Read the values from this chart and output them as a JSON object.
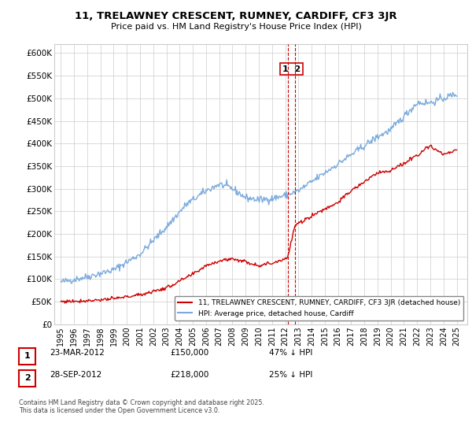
{
  "title": "11, TRELAWNEY CRESCENT, RUMNEY, CARDIFF, CF3 3JR",
  "subtitle": "Price paid vs. HM Land Registry's House Price Index (HPI)",
  "hpi_color": "#7aaadd",
  "price_color": "#cc0000",
  "ylim": [
    0,
    620000
  ],
  "yticks": [
    0,
    50000,
    100000,
    150000,
    200000,
    250000,
    300000,
    350000,
    400000,
    450000,
    500000,
    550000,
    600000
  ],
  "footer": "Contains HM Land Registry data © Crown copyright and database right 2025.\nThis data is licensed under the Open Government Licence v3.0.",
  "legend1": "11, TRELAWNEY CRESCENT, RUMNEY, CARDIFF, CF3 3JR (detached house)",
  "legend2": "HPI: Average price, detached house, Cardiff",
  "vline_x1": 2012.22,
  "vline_x2": 2012.73,
  "t1_date": "23-MAR-2012",
  "t1_price": "£150,000",
  "t1_hpi": "47% ↓ HPI",
  "t2_date": "28-SEP-2012",
  "t2_price": "£218,000",
  "t2_hpi": "25% ↓ HPI",
  "hpi_key_x": [
    1995,
    1997,
    1999,
    2001,
    2003,
    2004.5,
    2006,
    2007,
    2008,
    2009,
    2010,
    2011,
    2012,
    2013,
    2014,
    2015,
    2016,
    2017,
    2018,
    2019,
    2020,
    2021,
    2022,
    2023,
    2024,
    2025
  ],
  "hpi_key_y": [
    93000,
    105000,
    120000,
    155000,
    215000,
    265000,
    295000,
    310000,
    300000,
    280000,
    275000,
    278000,
    285000,
    295000,
    315000,
    335000,
    355000,
    375000,
    395000,
    415000,
    430000,
    460000,
    490000,
    490000,
    500000,
    510000
  ],
  "price_key_x": [
    1995,
    1997,
    1999,
    2001,
    2003,
    2005,
    2006,
    2007,
    2008,
    2009,
    2010,
    2011,
    2012.15,
    2012.22,
    2012.73,
    2013,
    2014,
    2015,
    2016,
    2017,
    2018,
    2019,
    2020,
    2021,
    2022,
    2022.5,
    2023,
    2023.5,
    2024,
    2025
  ],
  "price_key_y": [
    50000,
    52000,
    56000,
    65000,
    80000,
    110000,
    130000,
    140000,
    145000,
    138000,
    130000,
    135000,
    147000,
    150000,
    218000,
    222000,
    240000,
    255000,
    270000,
    295000,
    315000,
    335000,
    340000,
    355000,
    375000,
    385000,
    395000,
    385000,
    375000,
    385000
  ]
}
